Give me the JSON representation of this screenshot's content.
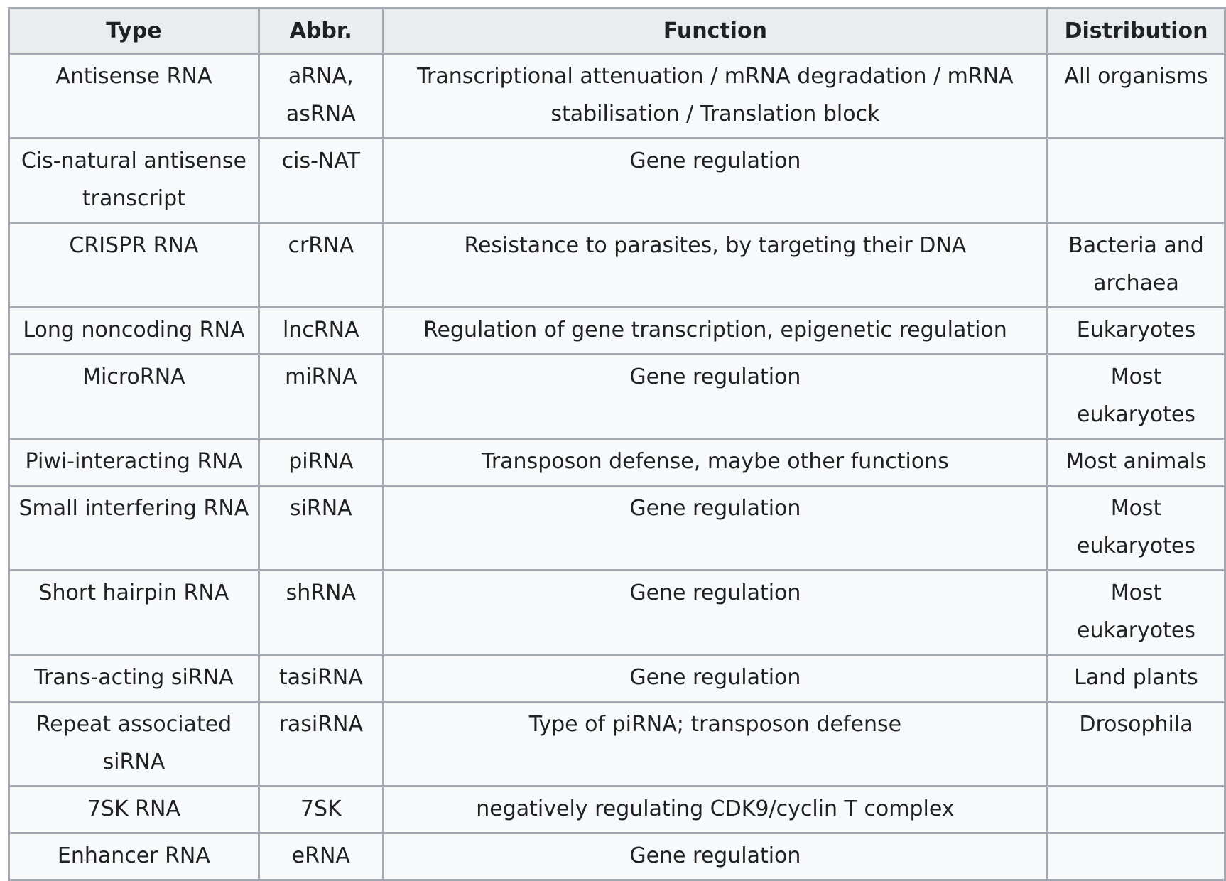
{
  "table": {
    "headers": [
      "Type",
      "Abbr.",
      "Function",
      "Distribution"
    ],
    "rows": [
      {
        "type": "Antisense RNA",
        "abbr": "aRNA, asRNA",
        "function": "Transcriptional attenuation / mRNA degradation / mRNA stabilisation / Translation block",
        "distribution": "All organisms"
      },
      {
        "type": "Cis-natural antisense transcript",
        "abbr": "cis-NAT",
        "function": "Gene regulation",
        "distribution": ""
      },
      {
        "type": "CRISPR RNA",
        "abbr": "crRNA",
        "function": "Resistance to parasites, by targeting their DNA",
        "distribution": "Bacteria and archaea"
      },
      {
        "type": "Long noncoding RNA",
        "abbr": "lncRNA",
        "function": "Regulation of gene transcription, epigenetic regulation",
        "distribution": "Eukaryotes"
      },
      {
        "type": "MicroRNA",
        "abbr": "miRNA",
        "function": "Gene regulation",
        "distribution": "Most eukaryotes"
      },
      {
        "type": "Piwi-interacting RNA",
        "abbr": "piRNA",
        "function": "Transposon defense, maybe other functions",
        "distribution": "Most animals"
      },
      {
        "type": "Small interfering RNA",
        "abbr": "siRNA",
        "function": "Gene regulation",
        "distribution": "Most eukaryotes"
      },
      {
        "type": "Short hairpin RNA",
        "abbr": "shRNA",
        "function": "Gene regulation",
        "distribution": "Most eukaryotes"
      },
      {
        "type": "Trans-acting siRNA",
        "abbr": "tasiRNA",
        "function": "Gene regulation",
        "distribution": "Land plants"
      },
      {
        "type": "Repeat associated siRNA",
        "abbr": "rasiRNA",
        "function": "Type of piRNA; transposon defense",
        "distribution": "Drosophila"
      },
      {
        "type": "7SK RNA",
        "abbr": "7SK",
        "function": "negatively regulating CDK9/cyclin T complex",
        "distribution": ""
      },
      {
        "type": "Enhancer RNA",
        "abbr": "eRNA",
        "function": "Gene regulation",
        "distribution": ""
      }
    ]
  },
  "colors": {
    "header_bg": "#eaecf0",
    "cell_bg": "#f8f9fa",
    "border": "#a2a9b1",
    "text": "#202122"
  }
}
